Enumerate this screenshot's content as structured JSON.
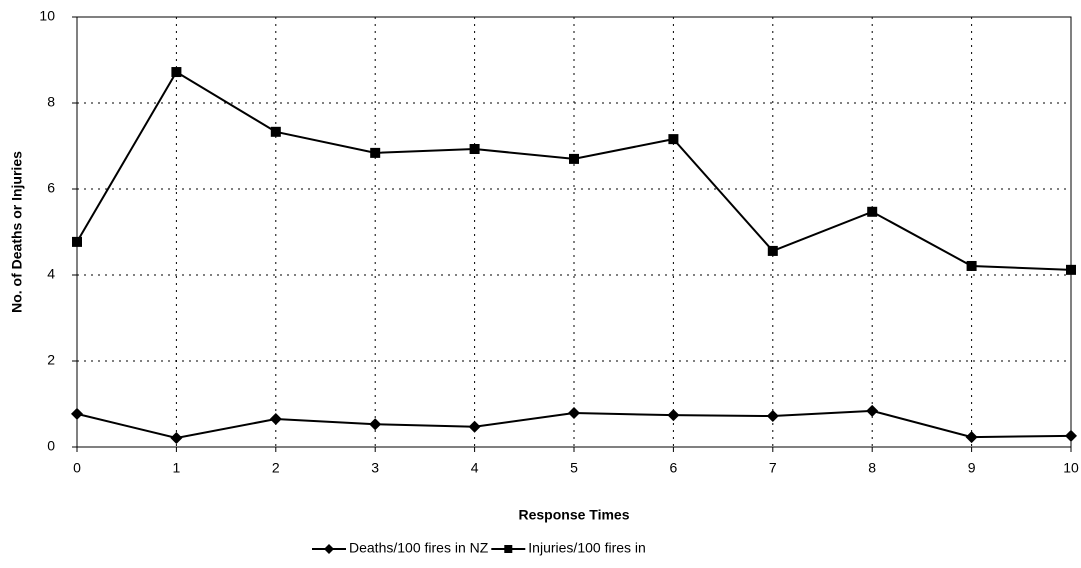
{
  "chart_data": {
    "type": "line",
    "x_label": "Response Times",
    "y_label": "No. of Deaths or Injuries",
    "x": [
      0,
      1,
      2,
      3,
      4,
      5,
      6,
      7,
      8,
      9,
      10
    ],
    "series": [
      {
        "name": "Deaths/100 fires in NZ",
        "color": "#000000",
        "marker": "diamond",
        "values": [
          0.77,
          0.21,
          0.65,
          0.53,
          0.47,
          0.79,
          0.74,
          0.72,
          0.84,
          0.23,
          0.26
        ]
      },
      {
        "name": "Injuries/100 fires in",
        "color": "#000000",
        "marker": "square",
        "values": [
          4.77,
          8.72,
          7.33,
          6.84,
          6.93,
          6.7,
          7.16,
          4.56,
          5.47,
          4.21,
          4.12
        ]
      }
    ],
    "xlim": [
      0,
      10
    ],
    "xticks": [
      0,
      1,
      2,
      3,
      4,
      5,
      6,
      7,
      8,
      9,
      10
    ],
    "ylim": [
      0,
      10
    ],
    "yticks": [
      0,
      2,
      4,
      6,
      8,
      10
    ],
    "grid": true,
    "legend": "bottom"
  }
}
